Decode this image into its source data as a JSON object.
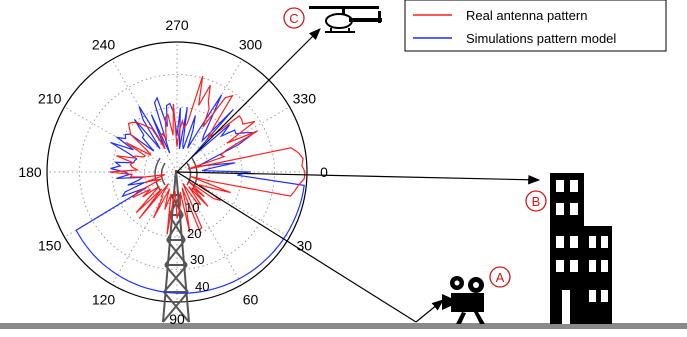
{
  "polar_plot": {
    "angle_labels": [
      "0",
      "30",
      "60",
      "90",
      "120",
      "150",
      "180",
      "210",
      "240",
      "270",
      "300",
      "330"
    ],
    "radius_labels": [
      "10",
      "20",
      "30",
      "40"
    ]
  },
  "legend": {
    "items": [
      {
        "label": "Real antenna pattern",
        "color": "#ff1f1f"
      },
      {
        "label": "Simulations pattern model",
        "color": "#1f2fff"
      }
    ]
  },
  "markers": {
    "a": "A",
    "b": "B",
    "c": "C"
  },
  "icons": {
    "helicopter": "helicopter-icon",
    "camera": "video-camera-icon",
    "building": "building-icon",
    "tower": "antenna-tower-icon"
  }
}
